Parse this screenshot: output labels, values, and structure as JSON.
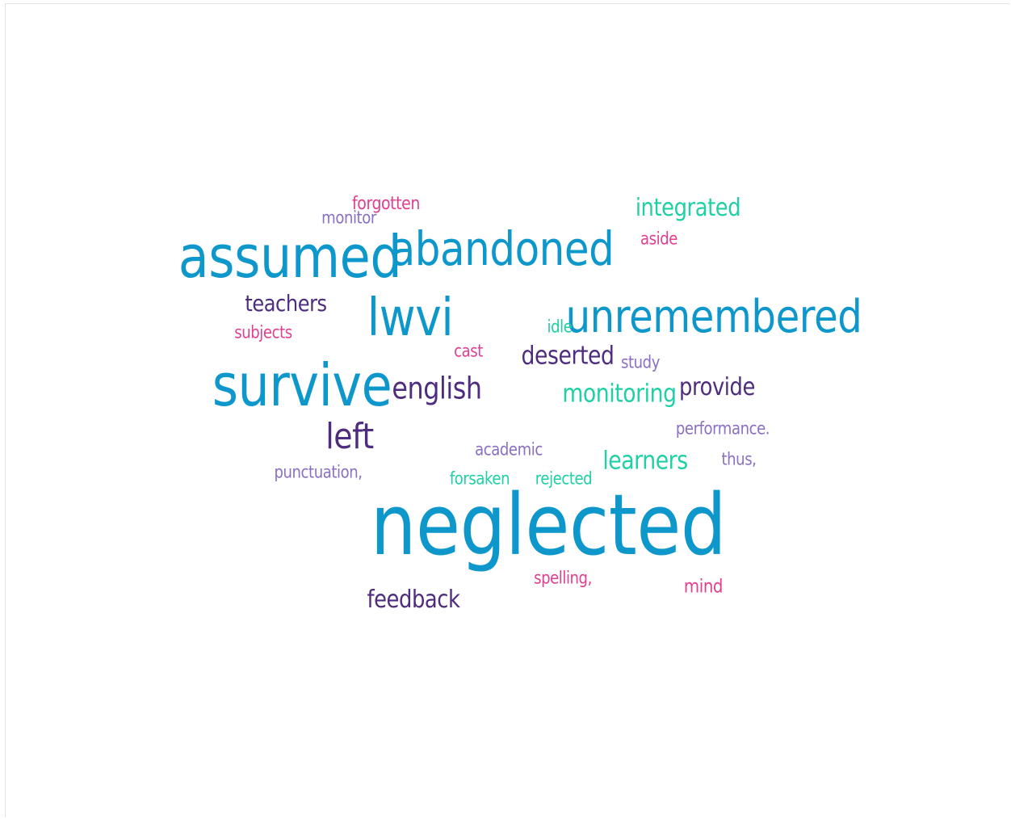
{
  "word_cloud": {
    "words": [
      {
        "text": "monitor",
        "color": "#8a6fc2"
      },
      {
        "text": "forgotten",
        "color": "#e0408f"
      },
      {
        "text": "integrated",
        "color": "#1fd0a5"
      },
      {
        "text": "assumed",
        "color": "#0e97cb"
      },
      {
        "text": "abandoned",
        "color": "#0e97cb"
      },
      {
        "text": "aside",
        "color": "#e0408f"
      },
      {
        "text": "teachers",
        "color": "#4e2d7e"
      },
      {
        "text": "lwvi",
        "color": "#0e97cb"
      },
      {
        "text": "subjects",
        "color": "#e0408f"
      },
      {
        "text": "unremembered",
        "color": "#0e97cb"
      },
      {
        "text": "idle",
        "color": "#1fd0a5"
      },
      {
        "text": "cast",
        "color": "#e0408f"
      },
      {
        "text": "deserted",
        "color": "#4e2d7e"
      },
      {
        "text": "study",
        "color": "#8a6fc2"
      },
      {
        "text": "survive",
        "color": "#0e97cb"
      },
      {
        "text": "english",
        "color": "#4e2d7e"
      },
      {
        "text": "monitoring",
        "color": "#1fd0a5"
      },
      {
        "text": "provide",
        "color": "#4e2d7e"
      },
      {
        "text": "left",
        "color": "#4e2d7e"
      },
      {
        "text": "performance.",
        "color": "#8a6fc2"
      },
      {
        "text": "academic",
        "color": "#8a6fc2"
      },
      {
        "text": "learners",
        "color": "#1fd0a5"
      },
      {
        "text": "thus,",
        "color": "#8a6fc2"
      },
      {
        "text": "punctuation,",
        "color": "#8a6fc2"
      },
      {
        "text": "forsaken",
        "color": "#1fd0a5"
      },
      {
        "text": "rejected",
        "color": "#1fd0a5"
      },
      {
        "text": "neglected",
        "color": "#0e97cb"
      },
      {
        "text": "spelling,",
        "color": "#e0408f"
      },
      {
        "text": "mind",
        "color": "#e0408f"
      },
      {
        "text": "feedback",
        "color": "#4e2d7e"
      }
    ]
  }
}
